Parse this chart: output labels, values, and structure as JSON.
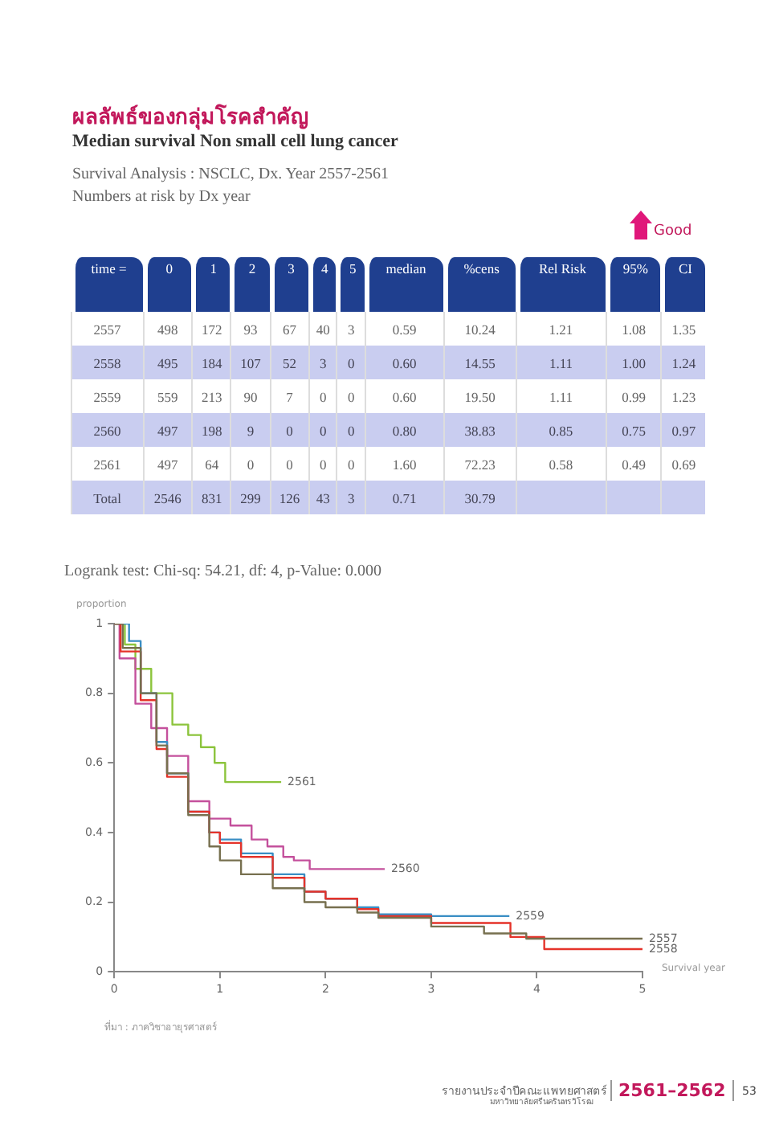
{
  "chart_data": {
    "type": "step",
    "title": "ผลลัพธ์ของกลุ่มโรคสำคัญ",
    "subtitle": "Median survival Non small cell lung cancer",
    "xlabel": "Survival year",
    "ylabel": "proportion",
    "xlim": [
      0,
      5
    ],
    "xticks": [
      0,
      1,
      2,
      3,
      4,
      5
    ],
    "ylim": [
      0,
      1
    ],
    "yticks": [
      0,
      0.2,
      0.4,
      0.6,
      0.8,
      1
    ],
    "series": [
      {
        "name": "2557",
        "color": "#77704f",
        "x": [
          0,
          0.08,
          0.25,
          0.4,
          0.5,
          0.7,
          0.9,
          1,
          1.2,
          1.5,
          1.8,
          2,
          2.3,
          2.5,
          3,
          3.5,
          3.9,
          5
        ],
        "values": [
          1,
          0.93,
          0.8,
          0.65,
          0.57,
          0.45,
          0.36,
          0.32,
          0.28,
          0.24,
          0.2,
          0.185,
          0.17,
          0.155,
          0.13,
          0.11,
          0.095,
          0.095
        ]
      },
      {
        "name": "2558",
        "color": "#e5332a",
        "x": [
          0,
          0.06,
          0.25,
          0.4,
          0.5,
          0.7,
          0.9,
          1,
          1.2,
          1.5,
          1.8,
          2,
          2.3,
          2.5,
          3,
          3.75,
          4.07,
          5
        ],
        "values": [
          1,
          0.92,
          0.78,
          0.64,
          0.56,
          0.46,
          0.4,
          0.37,
          0.33,
          0.27,
          0.23,
          0.21,
          0.18,
          0.16,
          0.14,
          0.1,
          0.065,
          0.065
        ]
      },
      {
        "name": "2559",
        "color": "#3a8ec4",
        "x": [
          0,
          0.14,
          0.25,
          0.4,
          0.5,
          0.7,
          0.9,
          1,
          1.2,
          1.5,
          1.8,
          2,
          2.3,
          2.5,
          3,
          3.74
        ],
        "values": [
          1,
          0.95,
          0.8,
          0.66,
          0.57,
          0.46,
          0.4,
          0.38,
          0.34,
          0.28,
          0.23,
          0.21,
          0.185,
          0.165,
          0.16,
          0.16
        ]
      },
      {
        "name": "2560",
        "color": "#c4509c",
        "x": [
          0,
          0.05,
          0.2,
          0.35,
          0.5,
          0.7,
          0.9,
          1.1,
          1.3,
          1.45,
          1.6,
          1.7,
          1.85,
          2.56
        ],
        "values": [
          1,
          0.9,
          0.77,
          0.7,
          0.62,
          0.49,
          0.44,
          0.42,
          0.38,
          0.36,
          0.33,
          0.32,
          0.295,
          0.295
        ]
      },
      {
        "name": "2561",
        "color": "#8cc43c",
        "x": [
          0,
          0.1,
          0.2,
          0.35,
          0.55,
          0.7,
          0.82,
          0.95,
          1.05,
          1.58
        ],
        "values": [
          1,
          0.94,
          0.87,
          0.8,
          0.71,
          0.68,
          0.645,
          0.6,
          0.545,
          0.545
        ]
      }
    ],
    "annotations": [
      "Survival Analysis : NSCLC, Dx. Year 2557-2561",
      "Numbers at risk by Dx year",
      "Good",
      "time =",
      "0",
      "1",
      "2",
      "3",
      "4",
      "5",
      "median",
      "%cens",
      "Rel Risk",
      "95%",
      "CI",
      "2557",
      "498",
      "172",
      "93",
      "67",
      "40",
      "3",
      "0.59",
      "10.24",
      "1.21",
      "1.08",
      "1.35",
      "2558",
      "495",
      "184",
      "107",
      "52",
      "3",
      "0",
      "0.60",
      "14.55",
      "1.11",
      "1.00",
      "1.24",
      "2559",
      "559",
      "213",
      "90",
      "7",
      "0",
      "0",
      "0.60",
      "19.50",
      "1.11",
      "0.99",
      "1.23",
      "2560",
      "497",
      "198",
      "9",
      "0",
      "0",
      "0",
      "0.80",
      "38.83",
      "0.85",
      "0.75",
      "0.97",
      "2561",
      "497",
      "64",
      "0",
      "0",
      "0",
      "0",
      "1.60",
      "72.23",
      "0.58",
      "0.49",
      "0.69",
      "Total",
      "2546",
      "831",
      "299",
      "126",
      "43",
      "3",
      "0.71",
      "30.79",
      "Logrank test: Chi-sq: 54.21, df: 4, p-Value: 0.000",
      "ที่มา : ภาควิชาอายุรศาสตร์",
      "รายงานประจำปีคณะแพทยศาสตร์",
      "มหาวิทยาลัยศรีนครินทรวิโรฒ",
      "2561–2562",
      "53"
    ]
  }
}
